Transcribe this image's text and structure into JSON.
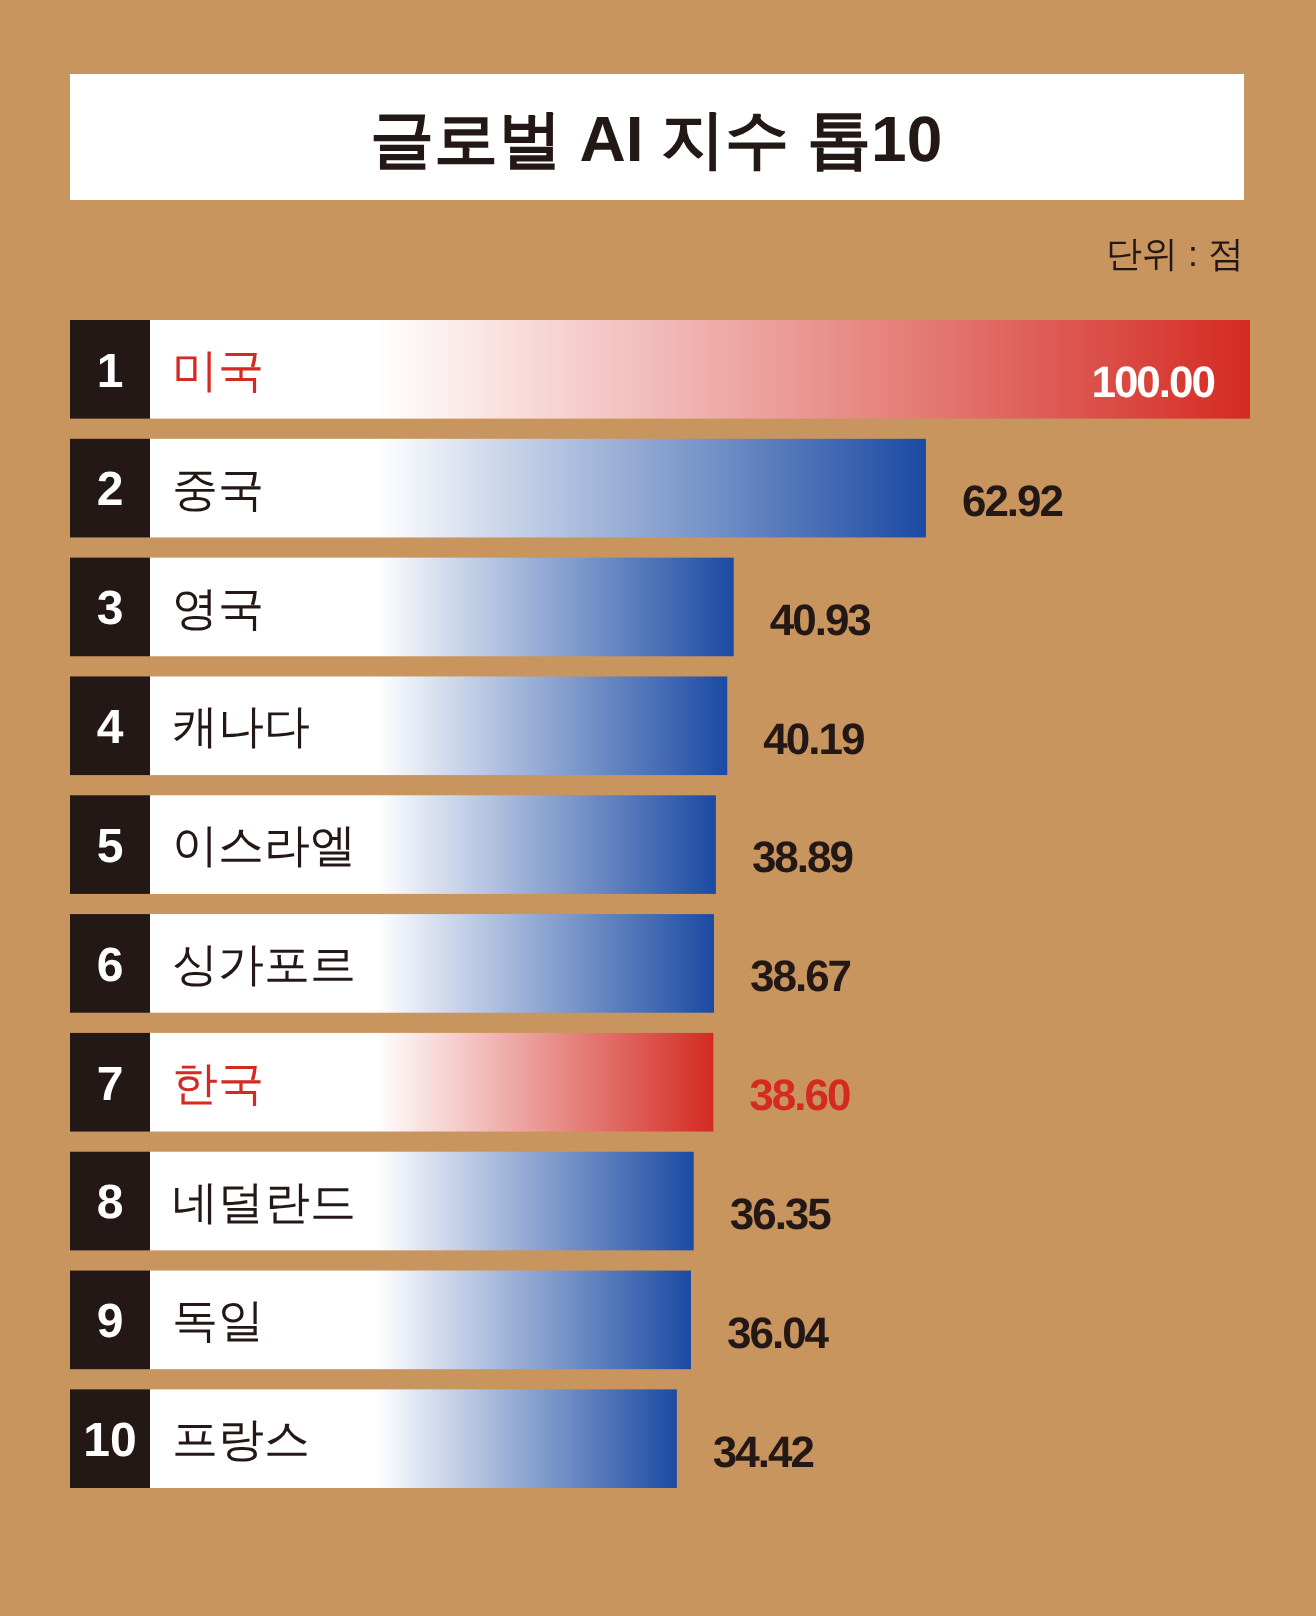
{
  "chart_data": {
    "type": "bar",
    "orientation": "horizontal",
    "title": "글로벌 AI 지수 톱10",
    "annotations": [
      "단위 : 점"
    ],
    "categories": [
      "1 미국",
      "2 중국",
      "3 영국",
      "4 캐나다",
      "5 이스라엘",
      "6 싱가포르",
      "7 한국",
      "8 네덜란드",
      "9 독일",
      "10 프랑스"
    ],
    "values": [
      100.0,
      62.92,
      40.93,
      40.19,
      38.89,
      38.67,
      38.6,
      36.35,
      36.04,
      34.42
    ],
    "colors": [
      "#d42a22",
      "#1b4aa3",
      "#1b4aa3",
      "#1b4aa3",
      "#1b4aa3",
      "#1b4aa3",
      "#d42a22",
      "#1b4aa3",
      "#1b4aa3",
      "#1b4aa3"
    ],
    "value_labels": [
      "100.00",
      "62.92",
      "40.93",
      "40.19",
      "38.89",
      "38.67",
      "38.60",
      "36.35",
      "36.04",
      "34.42"
    ]
  }
}
